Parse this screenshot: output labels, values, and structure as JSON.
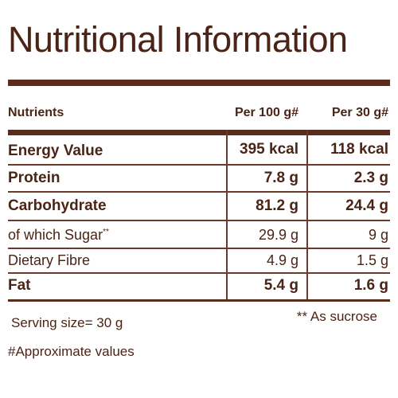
{
  "title": "Nutritional Information",
  "header": {
    "nutrients": "Nutrients",
    "per100": "Per 100 g#",
    "per30": "Per 30 g#"
  },
  "rows": [
    {
      "name": "Energy Value",
      "per100": "395 kcal",
      "per30": "118 kcal"
    },
    {
      "name": "Protein",
      "per100": "7.8 g",
      "per30": "2.3 g"
    },
    {
      "name": "Carbohydrate",
      "per100": "81.2 g",
      "per30": "24.4 g"
    },
    {
      "name": "of which Sugar",
      "marker": "**",
      "per100": "29.9 g",
      "per30": "9 g"
    },
    {
      "name": "Dietary Fibre",
      "per100": "4.9 g",
      "per30": "1.5 g"
    },
    {
      "name": "Fat",
      "per100": "5.4 g",
      "per30": "1.6 g"
    }
  ],
  "footer": {
    "serving": "Serving size= 30 g",
    "sucrose_note": "** As sucrose",
    "approx": "#Approximate values"
  },
  "colors": {
    "brand_brown": "#4a2416",
    "rule": "#5b2c1c"
  }
}
